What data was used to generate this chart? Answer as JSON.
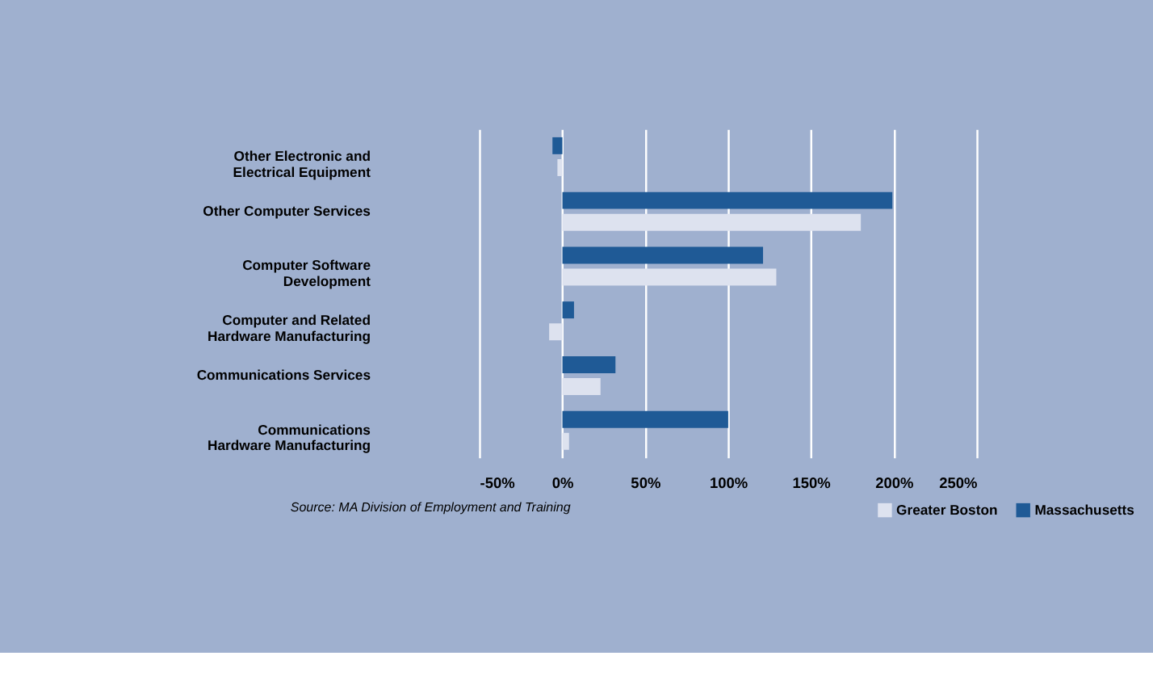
{
  "chart_data": {
    "type": "bar",
    "orientation": "horizontal",
    "categories": [
      "Other Electronic and\nElectrical Equipment",
      "Other Computer Services",
      "Computer Software\nDevelopment",
      "Computer and Related\nHardware Manufacturing",
      "Communications Services",
      "Communications\nHardware Manufacturing"
    ],
    "series": [
      {
        "name": "Greater Boston",
        "color": "#dde2ef",
        "values": [
          -3,
          180,
          129,
          -8,
          23,
          4
        ]
      },
      {
        "name": "Massachusetts",
        "color": "#1f5a96",
        "values": [
          -6,
          199,
          121,
          7,
          32,
          100
        ]
      }
    ],
    "xlim": [
      -50,
      250
    ],
    "xticks": [
      {
        "value": -50,
        "label": "-50%"
      },
      {
        "value": 0,
        "label": "0%"
      },
      {
        "value": 50,
        "label": "50%"
      },
      {
        "value": 100,
        "label": "100%"
      },
      {
        "value": 150,
        "label": "150%"
      },
      {
        "value": 200,
        "label": "200%"
      },
      {
        "value": 250,
        "label": "250%"
      }
    ],
    "grid": "x",
    "legend": "bottom right",
    "annotations": [
      "Source: MA Division of Employment and Training"
    ]
  }
}
